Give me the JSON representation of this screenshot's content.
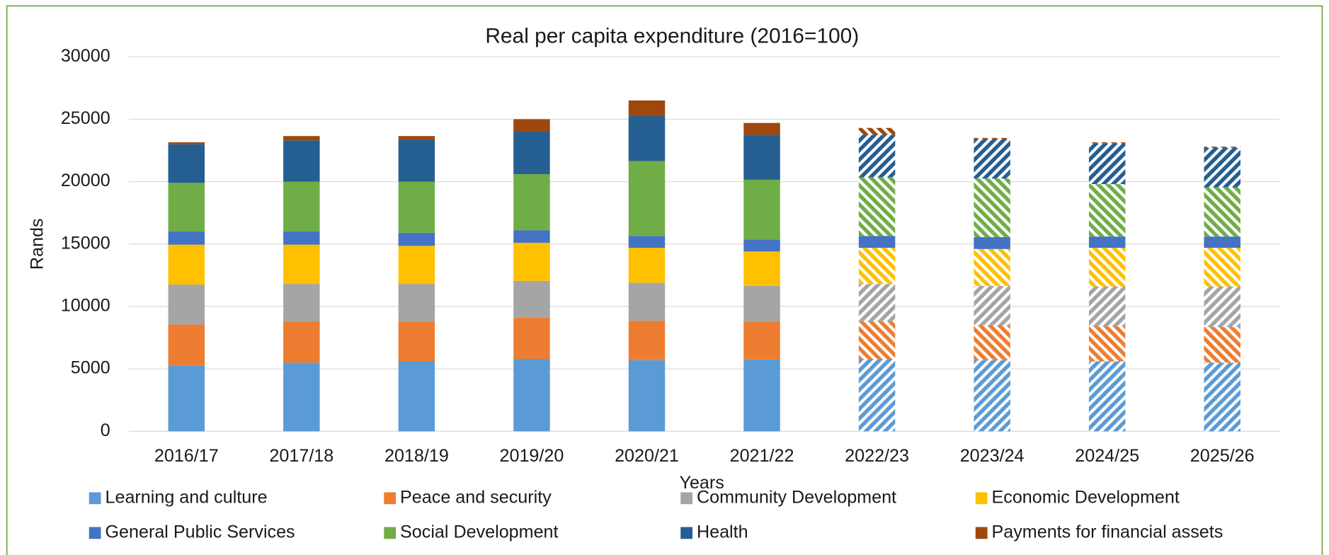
{
  "chart_data": {
    "type": "stacked_bar",
    "title": "Real per capita expenditure (2016=100)",
    "x_label": "Years",
    "y_label": "Rands",
    "categories": [
      "2016/17",
      "2017/18",
      "2018/19",
      "2019/20",
      "2020/21",
      "2021/22",
      "2022/23",
      "2023/24",
      "2024/25",
      "2025/26"
    ],
    "patterned": [
      false,
      false,
      false,
      false,
      false,
      false,
      true,
      true,
      true,
      true
    ],
    "ylim": [
      0,
      30000
    ],
    "yticks": [
      0,
      5000,
      10000,
      15000,
      20000,
      25000,
      30000
    ],
    "grid": true,
    "legend": "bottom",
    "series": [
      {
        "name": "Learning and culture",
        "color": "#5b9bd5",
        "hatch": true,
        "values": [
          5250,
          5500,
          5600,
          5800,
          5700,
          5750,
          5800,
          5700,
          5600,
          5500
        ]
      },
      {
        "name": "Peace and security",
        "color": "#ed7d31",
        "hatch": true,
        "values": [
          3300,
          3300,
          3200,
          3300,
          3150,
          3050,
          3000,
          2800,
          2800,
          2850
        ]
      },
      {
        "name": "Community Development",
        "color": "#a5a5a5",
        "hatch": true,
        "values": [
          3200,
          3000,
          3000,
          2950,
          3050,
          2850,
          3000,
          3150,
          3200,
          3250
        ]
      },
      {
        "name": "Economic Development",
        "color": "#ffc000",
        "hatch": true,
        "values": [
          3200,
          3150,
          3050,
          3050,
          2800,
          2750,
          2900,
          2950,
          3100,
          3100
        ]
      },
      {
        "name": "General Public Services",
        "color": "#4472c4",
        "hatch": false,
        "values": [
          1050,
          1050,
          1050,
          1000,
          950,
          950,
          950,
          950,
          900,
          900
        ]
      },
      {
        "name": "Social Development",
        "color": "#70ad47",
        "hatch": true,
        "values": [
          3900,
          4000,
          4100,
          4500,
          6000,
          4800,
          4700,
          4700,
          4200,
          3950
        ]
      },
      {
        "name": "Health",
        "color": "#255e91",
        "hatch": true,
        "values": [
          3100,
          3300,
          3350,
          3400,
          3600,
          3600,
          3400,
          3150,
          3250,
          3150
        ]
      },
      {
        "name": "Payments for financial assets",
        "color": "#9e480e",
        "hatch": true,
        "values": [
          150,
          350,
          300,
          1000,
          1250,
          950,
          550,
          100,
          100,
          100
        ]
      }
    ]
  }
}
